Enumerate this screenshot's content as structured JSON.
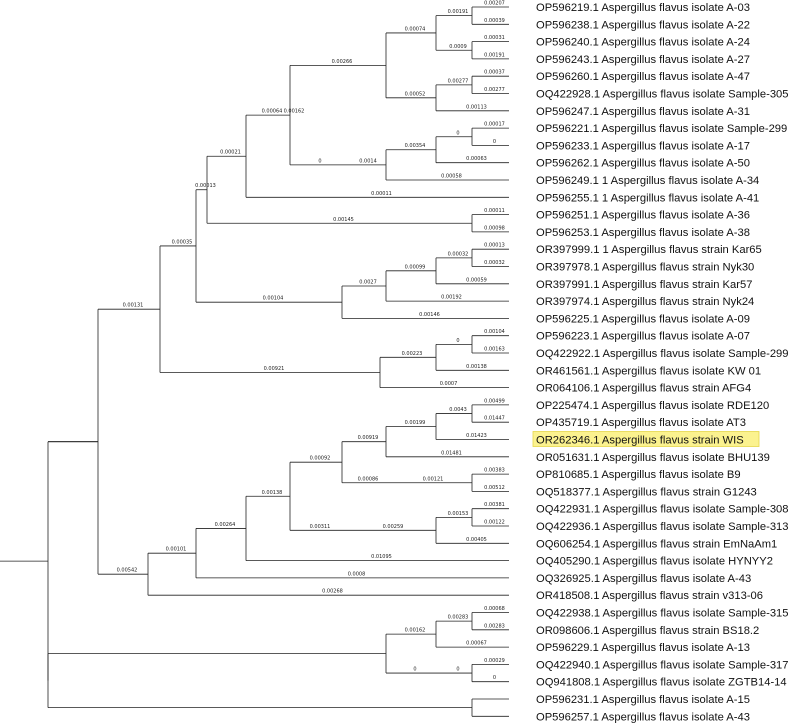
{
  "highlight_color": "#fbf28f",
  "root_branch": "0",
  "leaves": [
    "OP596219.1 Aspergillus flavus isolate A-03",
    "OP596238.1 Aspergillus flavus isolate A-22",
    "OP596240.1 Aspergillus flavus isolate A-24",
    "OP596243.1 Aspergillus flavus isolate A-27",
    "OP596260.1 Aspergillus flavus isolate A-47",
    "OQ422928.1 Aspergillus flavus isolate Sample-305",
    "OP596247.1 Aspergillus flavus isolate A-31",
    "OP596221.1 Aspergillus flavus isolate Sample-299",
    "OP596233.1 Aspergillus flavus isolate A-17",
    "OP596262.1 Aspergillus flavus isolate A-50",
    "OP596249.1 1 Aspergillus flavus isolate A-34",
    "OP596255.1 1 Aspergillus flavus isolate A-41",
    "OP596251.1 Aspergillus flavus isolate A-36",
    "OP596253.1 Aspergillus flavus isolate A-38",
    "OR397999.1 1 Aspergillus flavus strain Kar65",
    "OR397978.1 Aspergillus flavus strain Nyk30",
    "OR397991.1 Aspergillus flavus strain Kar57",
    "OR397974.1 Aspergillus flavus strain Nyk24",
    "OP596225.1 Aspergillus flavus isolate A-09",
    "OP596223.1 Aspergillus flavus isolate A-07",
    "OQ422922.1 Aspergillus flavus isolate Sample-299",
    "OR461561.1 Aspergillus flavus isolate KW 01",
    "OR064106.1 Aspergillus flavus strain AFG4",
    "OP225474.1 Aspergillus flavus isolate RDE120",
    "OP435719.1 Aspergillus flavus isolate AT3",
    "OR262346.1 Aspergillus flavus strain WIS",
    "OR051631.1 Aspergillus flavus isolate BHU139",
    "OP810685.1 Aspergillus flavus isolate B9",
    "OQ518377.1 Aspergillus flavus strain G1243",
    "OQ422931.1 Aspergillus flavus isolate Sample-308",
    "OQ422936.1 Aspergillus flavus isolate Sample-313",
    "OQ606254.1 Aspergillus flavus strain EmNaAm1",
    "OQ405290.1 Aspergillus flavus isolate HYNYY2",
    "OQ326925.1 Aspergillus flavus isolate A-43",
    "OR418508.1 Aspergillus flavus strain v313-06",
    "OQ422938.1 Aspergillus flavus isolate Sample-315",
    "OR098606.1 Aspergillus flavus strain BS18.2",
    "OP596229.1 Aspergillus flavus isolate A-13",
    "OQ422940.1 Aspergillus flavus isolate Sample-317",
    "OQ941808.1 Aspergillus flavus isolate ZGTB14-14",
    "OP596231.1 Aspergillus flavus isolate A-15",
    "OP596257.1 Aspergillus flavus isolate A-43"
  ],
  "highlighted_leaf_index": 25,
  "branch_labels": [
    "0.00207",
    "0.00039",
    "0.00031",
    "0.00191",
    "0.00191",
    "0.0009",
    "0.00037",
    "0.00277",
    "0.00277",
    "0.00113",
    "0.00074",
    "0.00052",
    "0.00017",
    "0",
    "0",
    "0.00063",
    "0.00354",
    "0.00058",
    "0.0014",
    "0.00266",
    "0",
    "0.00162",
    "0.00064",
    "0.00011",
    "0.00011",
    "0.00098",
    "0.00021",
    "0.00145",
    "0.00013",
    "0.00032",
    "0.00032",
    "0.00059",
    "0.00099",
    "0.00192",
    "0.0027",
    "0.00146",
    "0.00013",
    "0.00104",
    "0.00104",
    "0.00163",
    "0",
    "0.00138",
    "0.00223",
    "0.0007",
    "0.00035",
    "0.00921",
    "0.00499",
    "0.01447",
    "0.0043",
    "0.01423",
    "0.00199",
    "0.01481",
    "0.00383",
    "0.00512",
    "0.00121",
    "0.00919",
    "0.00086",
    "0.00381",
    "0.00122",
    "0.00153",
    "0.00405",
    "0.00259",
    "0.00092",
    "0.00311",
    "0.00138",
    "0.01095",
    "0.00264",
    "0.0008",
    "0.00101",
    "0.00268",
    "0.00131",
    "0.00542",
    "0.00068",
    "0.00283",
    "0.00283",
    "0.00067",
    "0.00029",
    "0",
    "0",
    "0.00162",
    "0"
  ]
}
